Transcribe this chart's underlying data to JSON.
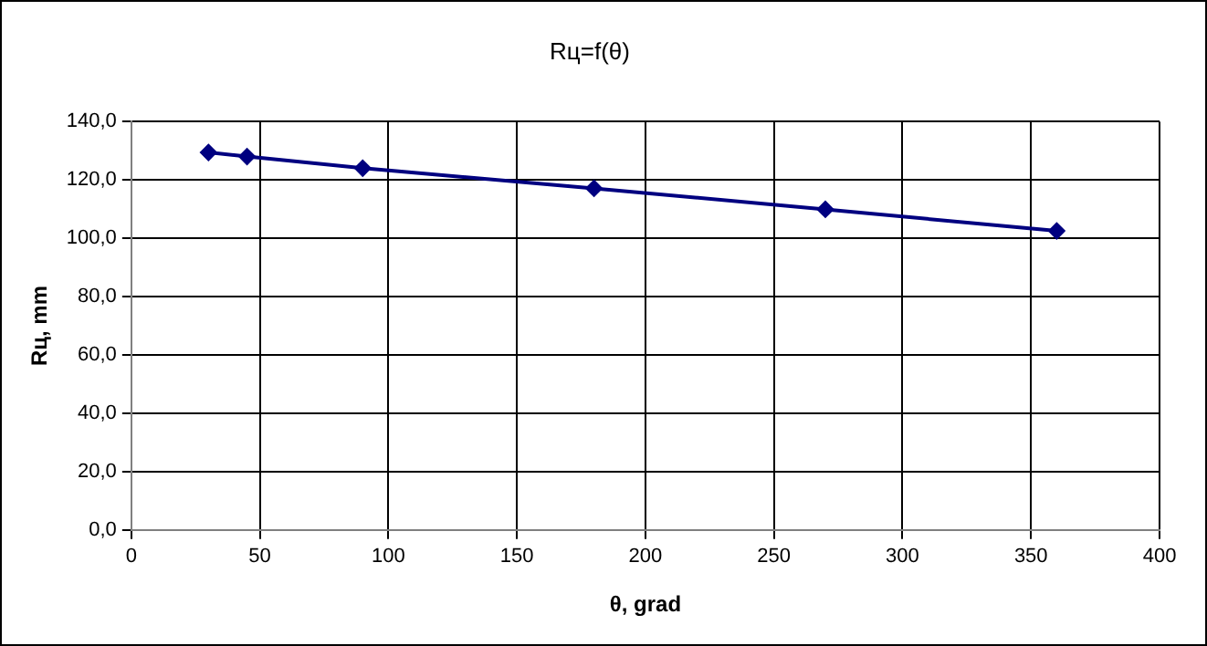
{
  "chart_data": {
    "type": "line",
    "title": "Rц=f(θ)",
    "xlabel": "θ, grad",
    "ylabel": "Rц, mm",
    "x": [
      30,
      45,
      90,
      180,
      270,
      360
    ],
    "series": [
      {
        "color": "#000080",
        "values": [
          129.4,
          128.0,
          124.0,
          117.1,
          109.9,
          102.5
        ]
      }
    ],
    "xlim": [
      0,
      400
    ],
    "xticks": [
      0,
      50,
      100,
      150,
      200,
      250,
      300,
      350,
      400
    ],
    "ylim": [
      0,
      140
    ],
    "yticks": [
      {
        "value": 0,
        "label": "0,0"
      },
      {
        "value": 20,
        "label": "20,0"
      },
      {
        "value": 40,
        "label": "40,0"
      },
      {
        "value": 60,
        "label": "60,0"
      },
      {
        "value": 80,
        "label": "80,0"
      },
      {
        "value": 100,
        "label": "100,0"
      },
      {
        "value": 120,
        "label": "120,0"
      },
      {
        "value": 140,
        "label": "140,0"
      }
    ],
    "grid": true,
    "legend": false,
    "marker": "diamond",
    "line_style": "solid"
  }
}
